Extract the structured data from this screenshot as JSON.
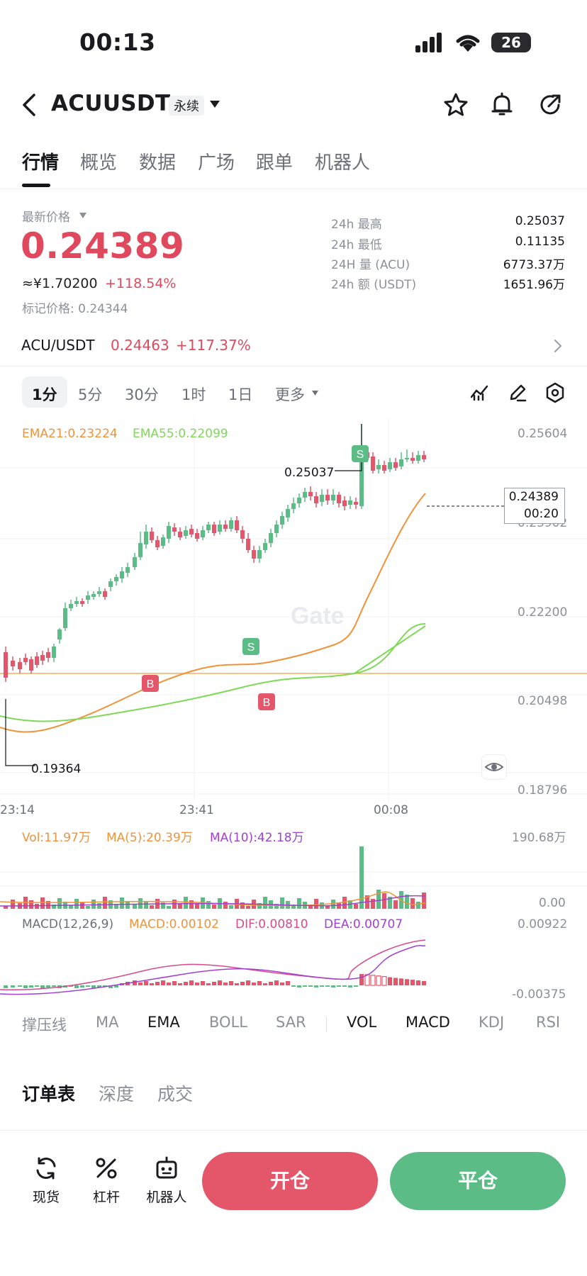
{
  "status_bar": {
    "time": "00:13",
    "battery": "26"
  },
  "header": {
    "pair": "ACUUSDT",
    "contract_type": "永续"
  },
  "tabs": [
    {
      "label": "行情"
    },
    {
      "label": "概览"
    },
    {
      "label": "数据"
    },
    {
      "label": "广场"
    },
    {
      "label": "跟单"
    },
    {
      "label": "机器人"
    }
  ],
  "price_panel": {
    "latest_label": "最新价格",
    "last_price": "0.24389",
    "cny_price": "≈¥1.70200",
    "change_pct": "+118.54%",
    "mark_price_label": "标记价格: 0.24344",
    "stats": [
      {
        "label": "24h  最高",
        "value": "0.25037"
      },
      {
        "label": "24h  最低",
        "value": "0.11135"
      },
      {
        "label": "24H  量 (ACU)",
        "value": "6773.37万"
      },
      {
        "label": "24h  额 (USDT)",
        "value": "1651.96万"
      }
    ]
  },
  "spot_link": {
    "pair": "ACU/USDT",
    "price": "0.24463",
    "change": "+117.37%"
  },
  "intervals": [
    "1分",
    "5分",
    "30分",
    "1时",
    "1日",
    "更多"
  ],
  "chart": {
    "ema21": "EMA21:0.23224",
    "ema55": "EMA55:0.22099",
    "price_axis": [
      "0.25604",
      "0.23902",
      "0.22200",
      "0.20498",
      "0.18796"
    ],
    "high_marker": "0.25037",
    "low_marker": "0.19364",
    "current_price_box": "0.24389",
    "countdown": "00:20",
    "time_axis": [
      "23:14",
      "23:41",
      "00:08"
    ],
    "watermark": "Gate",
    "markers": {
      "sell": "S",
      "buy": "B"
    },
    "vol_label": "Vol:11.97万",
    "vol_ma5": "MA(5):20.39万",
    "vol_ma10": "MA(10):42.18万",
    "vol_axis": [
      "190.68万",
      "0.00"
    ],
    "macd_label": "MACD(12,26,9)",
    "macd_value": "MACD:0.00102",
    "dif_value": "DIF:0.00810",
    "dea_value": "DEA:0.00707",
    "macd_axis": [
      "0.00922",
      "-0.00375"
    ],
    "colors": {
      "up": "#5cbc86",
      "down": "#e4566a",
      "ema21": "#f0923a",
      "ema55": "#7ed957",
      "ma10": "#a240d0"
    }
  },
  "indicators": [
    "撑压线",
    "MA",
    "EMA",
    "BOLL",
    "SAR",
    "VOL",
    "MACD",
    "KDJ",
    "RSI"
  ],
  "orderbook_tabs": [
    "订单表",
    "深度",
    "成交"
  ],
  "bottom": {
    "spot": "现货",
    "leverage": "杠杆",
    "robot": "机器人",
    "open": "开仓",
    "close": "平仓"
  }
}
